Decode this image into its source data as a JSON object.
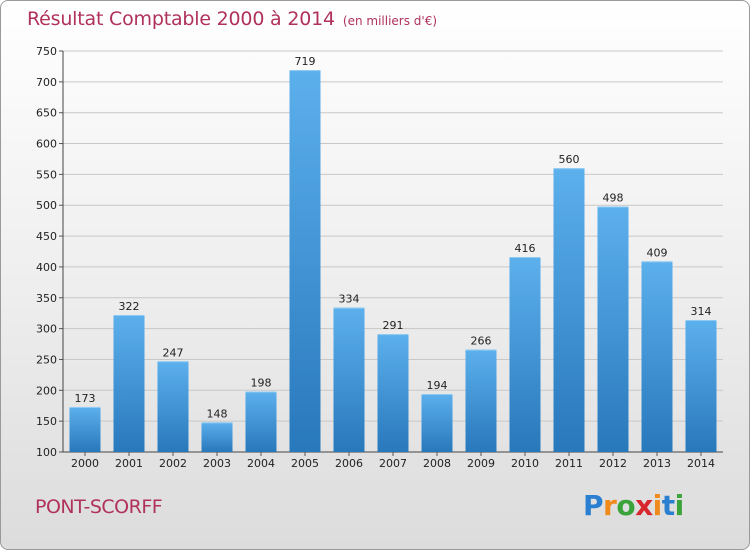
{
  "header": {
    "title": "Résultat Comptable 2000 à 2014",
    "unit": "(en milliers d'€)"
  },
  "footer": {
    "place": "PONT-SCORFF",
    "logo": {
      "letters": [
        "P",
        "r",
        "o",
        "x",
        "i",
        "t",
        "i"
      ],
      "colors": [
        "#2a7fd0",
        "#f08a1c",
        "#3aa33a",
        "#d8262e",
        "#f08a1c",
        "#2a7fd0",
        "#3aa33a"
      ]
    }
  },
  "colors": {
    "bar_top": "#5cb0ec",
    "bar_bottom": "#2878bc",
    "title": "#b0325a",
    "grid": "#c8c8c8"
  },
  "chart_data": {
    "type": "bar",
    "title": "Résultat Comptable 2000 à 2014",
    "ylabel": "",
    "xlabel": "",
    "ylim": [
      100,
      750
    ],
    "yticks": [
      100,
      150,
      200,
      250,
      300,
      350,
      400,
      450,
      500,
      550,
      600,
      650,
      700,
      750
    ],
    "grid": true,
    "categories": [
      "2000",
      "2001",
      "2002",
      "2003",
      "2004",
      "2005",
      "2006",
      "2007",
      "2008",
      "2009",
      "2010",
      "2011",
      "2012",
      "2013",
      "2014"
    ],
    "values": [
      173,
      322,
      247,
      148,
      198,
      719,
      334,
      291,
      194,
      266,
      416,
      560,
      498,
      409,
      314
    ]
  }
}
